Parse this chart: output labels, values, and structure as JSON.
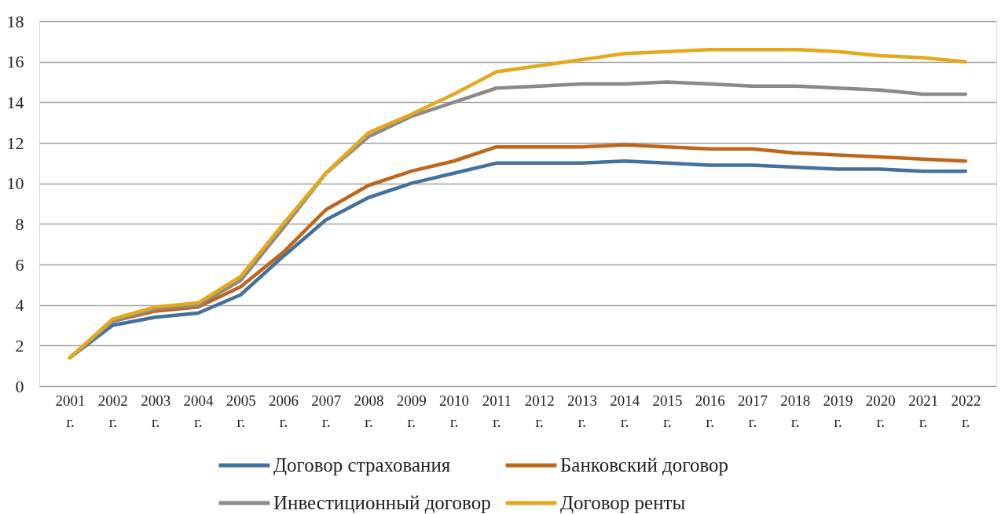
{
  "chart_data": {
    "type": "line",
    "categories": [
      "2001 г.",
      "2002 г.",
      "2003 г.",
      "2004 г.",
      "2005 г.",
      "2006 г.",
      "2007 г.",
      "2008 г.",
      "2009 г.",
      "2010 г.",
      "2011 г.",
      "2012 г.",
      "2013 г.",
      "2014 г.",
      "2015 г.",
      "2016 г.",
      "2017 г.",
      "2018 г.",
      "2019 г.",
      "2020 г.",
      "2021 г.",
      "2022 г."
    ],
    "series": [
      {
        "name": "Договор страхования",
        "color": "#41719c",
        "values": [
          1.4,
          3.0,
          3.4,
          3.6,
          4.5,
          6.4,
          8.2,
          9.3,
          10.0,
          10.5,
          11.0,
          11.0,
          11.0,
          11.1,
          11.0,
          10.9,
          10.9,
          10.8,
          10.7,
          10.7,
          10.6,
          10.6
        ]
      },
      {
        "name": "Банковский договор",
        "color": "#c0651a",
        "values": [
          1.4,
          3.2,
          3.7,
          3.9,
          4.9,
          6.6,
          8.7,
          9.9,
          10.6,
          11.1,
          11.8,
          11.8,
          11.8,
          11.9,
          11.8,
          11.7,
          11.7,
          11.5,
          11.4,
          11.3,
          11.2,
          11.1
        ]
      },
      {
        "name": "Инвестиционный договор",
        "color": "#8a8a8a",
        "values": [
          1.4,
          3.2,
          3.8,
          4.0,
          5.2,
          7.8,
          10.5,
          12.3,
          13.3,
          14.0,
          14.7,
          14.8,
          14.9,
          14.9,
          15.0,
          14.9,
          14.8,
          14.8,
          14.7,
          14.6,
          14.4,
          14.4
        ]
      },
      {
        "name": "Договор ренты",
        "color": "#e3a81b",
        "values": [
          1.4,
          3.3,
          3.9,
          4.1,
          5.4,
          8.0,
          10.5,
          12.5,
          13.4,
          14.4,
          15.5,
          15.8,
          16.1,
          16.4,
          16.5,
          16.6,
          16.6,
          16.6,
          16.5,
          16.3,
          16.2,
          16.0
        ]
      }
    ],
    "ylim": [
      0,
      18
    ],
    "yticks": [
      0,
      2,
      4,
      6,
      8,
      10,
      12,
      14,
      16,
      18
    ],
    "grid": "y",
    "legend": "bottom"
  }
}
